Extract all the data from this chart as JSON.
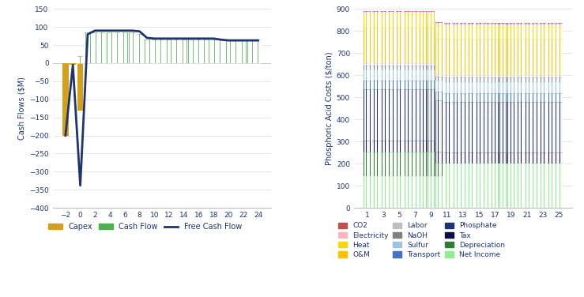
{
  "left_chart": {
    "ylabel": "Cash Flows ($M)",
    "ylim": [
      -400,
      150
    ],
    "yticks": [
      -400,
      -350,
      -300,
      -250,
      -200,
      -150,
      -100,
      -50,
      0,
      50,
      100,
      150
    ],
    "xticks": [
      -2,
      0,
      2,
      4,
      6,
      8,
      10,
      12,
      14,
      16,
      18,
      20,
      22,
      24
    ],
    "capex_years": [
      -2,
      -1,
      0
    ],
    "capex_values": [
      -200,
      -5,
      -130
    ],
    "cashflow_years": [
      0,
      1,
      2,
      3,
      4,
      5,
      6,
      7,
      8,
      9,
      10,
      11,
      12,
      13,
      14,
      15,
      16,
      17,
      18,
      19,
      20,
      21,
      22,
      23,
      24
    ],
    "cashflow_values": [
      20,
      85,
      85,
      85,
      85,
      85,
      85,
      85,
      80,
      65,
      65,
      65,
      65,
      65,
      65,
      65,
      65,
      65,
      65,
      65,
      65,
      65,
      65,
      65,
      65
    ],
    "fcf_years": [
      -2,
      -1,
      0,
      1,
      2,
      3,
      4,
      5,
      6,
      7,
      8,
      9,
      10,
      11,
      12,
      13,
      14,
      15,
      16,
      17,
      18,
      19,
      20,
      21,
      22,
      23,
      24
    ],
    "fcf_values": [
      -200,
      -5,
      -338,
      80,
      90,
      90,
      90,
      90,
      90,
      90,
      88,
      70,
      68,
      68,
      68,
      68,
      68,
      68,
      68,
      68,
      68,
      65,
      63,
      63,
      63,
      63,
      63
    ],
    "capex_color": "#D4A017",
    "cashflow_color": "#4CAF50",
    "fcf_color": "#1F3370"
  },
  "right_chart": {
    "ylabel": "Phosphoric Acid Costs ($/ton)",
    "ylim": [
      0,
      900
    ],
    "yticks": [
      0,
      100,
      200,
      300,
      400,
      500,
      600,
      700,
      800,
      900
    ],
    "years": [
      1,
      2,
      3,
      4,
      5,
      6,
      7,
      8,
      9,
      10,
      11,
      12,
      13,
      14,
      15,
      16,
      17,
      18,
      19,
      20,
      21,
      22,
      23,
      24,
      25
    ],
    "xtick_labels": [
      "1",
      "3",
      "5",
      "7",
      "9",
      "11",
      "13",
      "15",
      "17",
      "19",
      "21",
      "23",
      "25"
    ],
    "xtick_positions": [
      1,
      3,
      5,
      7,
      9,
      11,
      13,
      15,
      17,
      19,
      21,
      23,
      25
    ],
    "components_order": [
      "Net Income",
      "Depreciation",
      "Tax",
      "Phosphate",
      "Transport",
      "Sulfur",
      "NaOH",
      "Labor",
      "O&M",
      "Heat",
      "Electricity",
      "CO2"
    ],
    "components": {
      "Net Income": {
        "color": "#90EE90",
        "values": [
          145,
          145,
          145,
          145,
          145,
          145,
          145,
          145,
          145,
          145,
          200,
          200,
          200,
          200,
          200,
          200,
          200,
          200,
          200,
          200,
          200,
          200,
          200,
          200,
          200
        ]
      },
      "Depreciation": {
        "color": "#2E7D32",
        "values": [
          110,
          110,
          110,
          110,
          110,
          110,
          110,
          110,
          110,
          60,
          0,
          0,
          0,
          0,
          0,
          0,
          0,
          0,
          0,
          0,
          0,
          0,
          0,
          0,
          0
        ]
      },
      "Tax": {
        "color": "#0A1045",
        "values": [
          50,
          50,
          50,
          50,
          50,
          50,
          50,
          50,
          50,
          50,
          50,
          50,
          50,
          50,
          50,
          50,
          50,
          50,
          50,
          50,
          50,
          50,
          50,
          50,
          50
        ]
      },
      "Phosphate": {
        "color": "#1F3370",
        "values": [
          230,
          230,
          230,
          230,
          230,
          230,
          230,
          230,
          230,
          230,
          230,
          230,
          230,
          230,
          230,
          230,
          230,
          230,
          230,
          230,
          230,
          230,
          230,
          230,
          230
        ]
      },
      "Transport": {
        "color": "#4472C4",
        "values": [
          40,
          40,
          40,
          40,
          40,
          40,
          40,
          40,
          40,
          40,
          40,
          40,
          40,
          40,
          40,
          40,
          40,
          40,
          40,
          40,
          40,
          40,
          40,
          40,
          40
        ]
      },
      "Sulfur": {
        "color": "#9DC3E6",
        "values": [
          50,
          50,
          50,
          50,
          50,
          50,
          50,
          50,
          50,
          50,
          50,
          50,
          50,
          50,
          50,
          50,
          50,
          50,
          50,
          50,
          50,
          50,
          50,
          50,
          50
        ]
      },
      "NaOH": {
        "color": "#808080",
        "values": [
          20,
          20,
          20,
          20,
          20,
          20,
          20,
          20,
          20,
          20,
          20,
          20,
          20,
          20,
          20,
          20,
          20,
          20,
          20,
          20,
          20,
          20,
          20,
          20,
          20
        ]
      },
      "Labor": {
        "color": "#BFBFBF",
        "values": [
          10,
          10,
          10,
          10,
          10,
          10,
          10,
          10,
          10,
          10,
          10,
          10,
          10,
          10,
          10,
          10,
          10,
          10,
          10,
          10,
          10,
          10,
          10,
          10,
          10
        ]
      },
      "O&M": {
        "color": "#FFC000",
        "values": [
          160,
          160,
          160,
          160,
          160,
          160,
          160,
          160,
          160,
          160,
          160,
          160,
          160,
          160,
          160,
          160,
          160,
          160,
          160,
          160,
          160,
          160,
          160,
          160,
          160
        ]
      },
      "Heat": {
        "color": "#FFD700",
        "values": [
          60,
          60,
          60,
          60,
          60,
          60,
          60,
          60,
          60,
          60,
          60,
          60,
          60,
          60,
          60,
          60,
          60,
          60,
          60,
          60,
          60,
          60,
          60,
          60,
          60
        ]
      },
      "Electricity": {
        "color": "#FFB6C1",
        "values": [
          10,
          10,
          10,
          10,
          10,
          10,
          10,
          10,
          10,
          10,
          10,
          10,
          10,
          10,
          10,
          10,
          10,
          10,
          10,
          10,
          10,
          10,
          10,
          10,
          10
        ]
      },
      "CO2": {
        "color": "#C0504D",
        "values": [
          5,
          5,
          5,
          5,
          5,
          5,
          5,
          5,
          5,
          5,
          5,
          5,
          5,
          5,
          5,
          5,
          5,
          5,
          5,
          5,
          5,
          5,
          5,
          5,
          5
        ]
      }
    },
    "legend_order": [
      "CO2",
      "Electricity",
      "Heat",
      "O&M",
      "Labor",
      "NaOH",
      "Sulfur",
      "Transport",
      "Phosphate",
      "Tax",
      "Depreciation",
      "Net Income"
    ]
  }
}
